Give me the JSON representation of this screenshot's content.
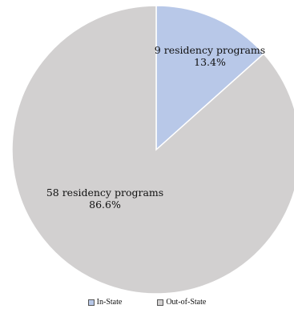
{
  "chart_data": {
    "type": "pie",
    "slices": [
      {
        "name": "In-State",
        "value": 13.4,
        "count_label": "9 residency programs",
        "pct_label": "13.4%",
        "color": "#b8c8e8"
      },
      {
        "name": "Out-of-State",
        "value": 86.6,
        "count_label": "58 residency programs",
        "pct_label": "86.6%",
        "color": "#d2d0d0"
      }
    ],
    "legend_position": "bottom",
    "start_angle": "12 o'clock",
    "direction": "clockwise"
  }
}
